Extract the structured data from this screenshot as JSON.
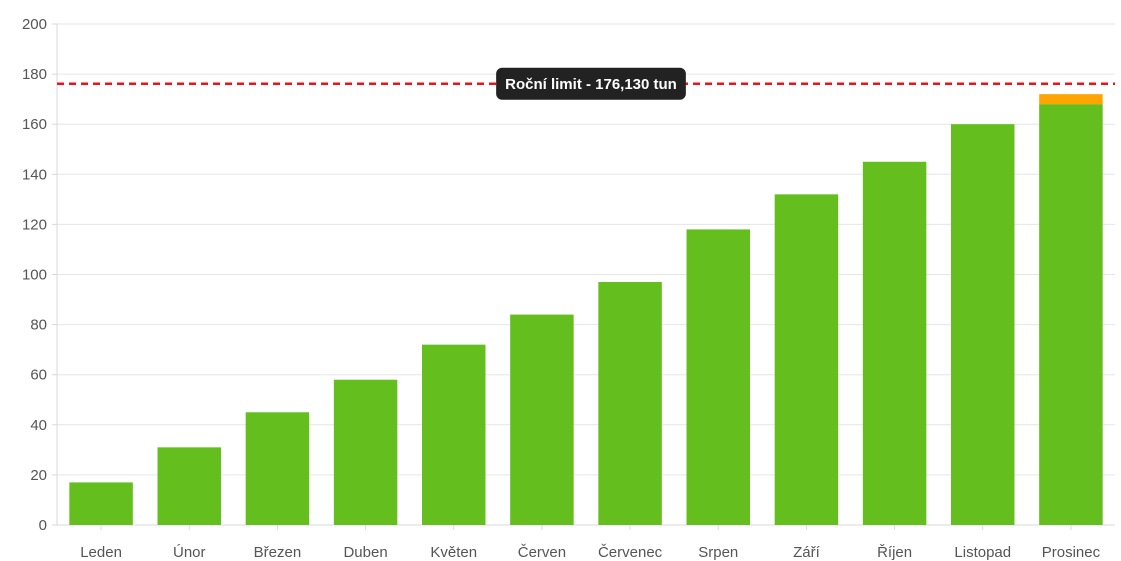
{
  "chart_data": {
    "type": "bar",
    "stacked": true,
    "categories": [
      "Leden",
      "Únor",
      "Březen",
      "Duben",
      "Květen",
      "Červen",
      "Červenec",
      "Srpen",
      "Září",
      "Říjen",
      "Listopad",
      "Prosinec"
    ],
    "series": [
      {
        "color": "#64BE1E",
        "values": [
          17,
          31,
          45,
          58,
          72,
          84,
          97,
          118,
          132,
          145,
          160,
          168
        ]
      },
      {
        "color": "#FFA500",
        "values": [
          0,
          0,
          0,
          0,
          0,
          0,
          0,
          0,
          0,
          0,
          0,
          4
        ]
      }
    ],
    "ylim": [
      0,
      200
    ],
    "yticks": [
      0,
      20,
      40,
      60,
      80,
      100,
      120,
      140,
      160,
      180,
      200
    ],
    "grid": true,
    "annotation": {
      "type": "horizontal-line",
      "value": 176.13,
      "label": "Roční limit - 176,130 tun",
      "line_color": "#E8141C",
      "label_background": "#222222",
      "label_color": "#ffffff"
    },
    "title": "",
    "xlabel": "",
    "ylabel": ""
  }
}
